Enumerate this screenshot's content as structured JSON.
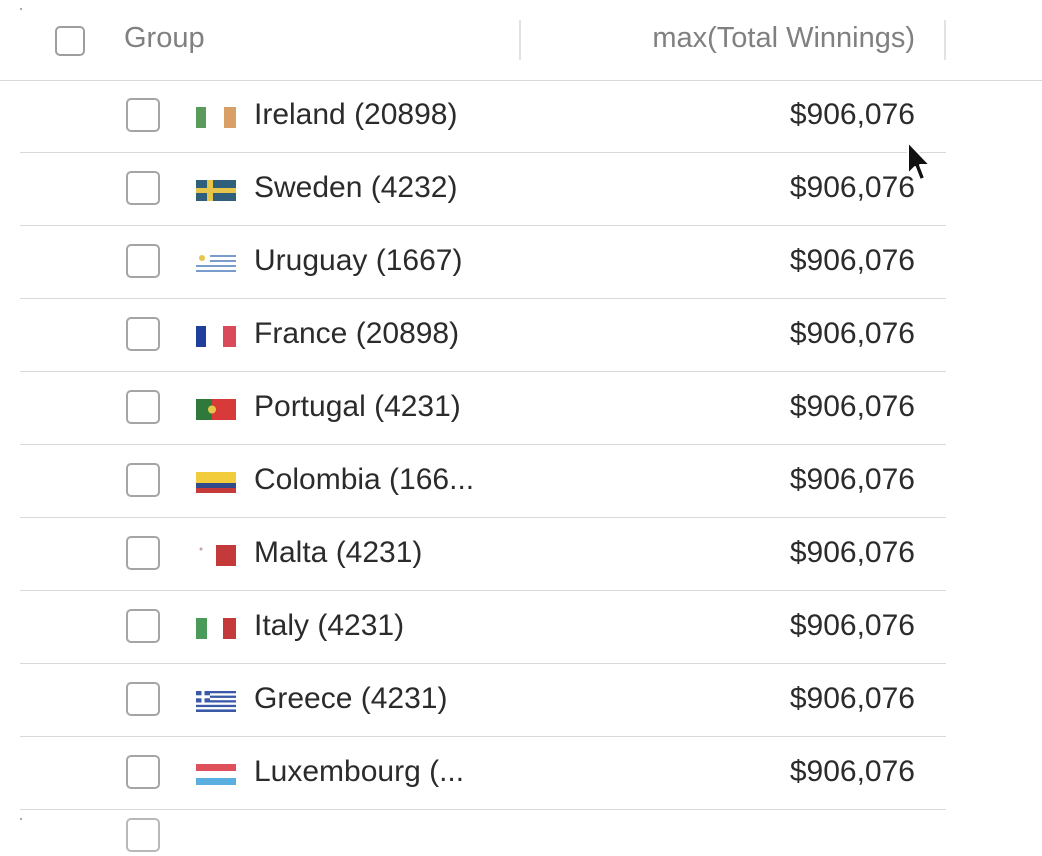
{
  "header": {
    "group_label": "Group",
    "value_label": "max(Total Winnings)"
  },
  "rows": [
    {
      "label": "Ireland (20898)",
      "value": "$906,076",
      "flag": "ireland-flag-icon"
    },
    {
      "label": "Sweden (4232)",
      "value": "$906,076",
      "flag": "sweden-flag-icon"
    },
    {
      "label": "Uruguay (1667)",
      "value": "$906,076",
      "flag": "uruguay-flag-icon"
    },
    {
      "label": "France (20898)",
      "value": "$906,076",
      "flag": "france-flag-icon"
    },
    {
      "label": "Portugal (4231)",
      "value": "$906,076",
      "flag": "portugal-flag-icon"
    },
    {
      "label": "Colombia (166...",
      "value": "$906,076",
      "flag": "colombia-flag-icon"
    },
    {
      "label": "Malta (4231)",
      "value": "$906,076",
      "flag": "malta-flag-icon"
    },
    {
      "label": "Italy (4231)",
      "value": "$906,076",
      "flag": "italy-flag-icon"
    },
    {
      "label": "Greece (4231)",
      "value": "$906,076",
      "flag": "greece-flag-icon"
    },
    {
      "label": "Luxembourg (...",
      "value": "$906,076",
      "flag": "luxembourg-flag-icon"
    }
  ],
  "colors": {
    "row_border": "#d9d9d9",
    "header_text": "#808080",
    "body_text": "#2b2b2b"
  }
}
